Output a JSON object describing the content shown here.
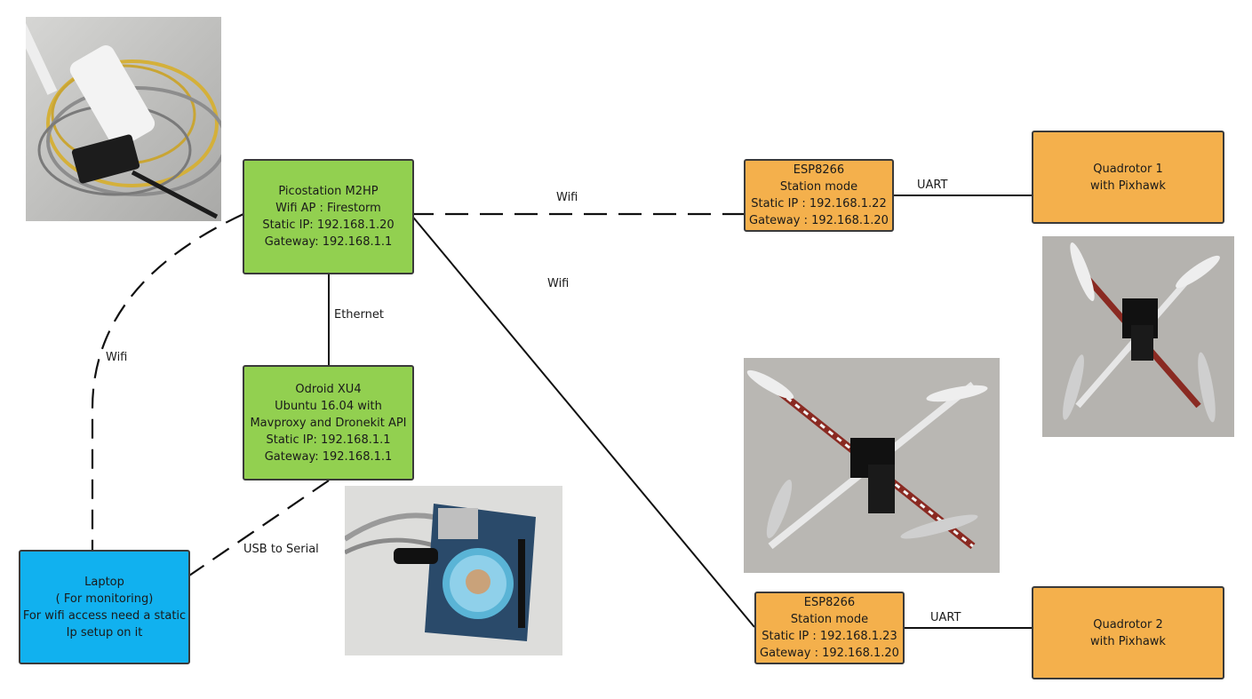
{
  "nodes": {
    "picostation": {
      "lines": [
        "Picostation M2HP",
        "Wifi AP : Firestorm",
        "Static IP: 192.168.1.20",
        "Gateway: 192.168.1.1"
      ]
    },
    "odroid": {
      "lines": [
        "Odroid XU4",
        "Ubuntu 16.04 with",
        "Mavproxy and Dronekit API",
        "Static IP: 192.168.1.1",
        "Gateway: 192.168.1.1"
      ]
    },
    "laptop": {
      "lines": [
        "Laptop",
        "( For monitoring)",
        "For wifi access need a static",
        "Ip setup on it"
      ]
    },
    "esp1": {
      "lines": [
        "ESP8266",
        "Station mode",
        "Static IP : 192.168.1.22",
        "Gateway : 192.168.1.20"
      ]
    },
    "esp2": {
      "lines": [
        "ESP8266",
        "Station mode",
        "Static IP : 192.168.1.23",
        "Gateway : 192.168.1.20"
      ]
    },
    "quad1": {
      "lines": [
        "Quadrotor 1",
        "with Pixhawk"
      ]
    },
    "quad2": {
      "lines": [
        "Quadrotor 2",
        "with Pixhawk"
      ]
    }
  },
  "edges": {
    "pico_esp1": "Wifi",
    "pico_esp2": "Wifi",
    "pico_laptop": "Wifi",
    "pico_odroid": "Ethernet",
    "odroid_laptop": "USB to Serial",
    "esp1_quad1": "UART",
    "esp2_quad2": "UART"
  },
  "colors": {
    "green": "#92d050",
    "orange": "#f4b04c",
    "blue": "#11b1ef",
    "line": "#111111"
  }
}
